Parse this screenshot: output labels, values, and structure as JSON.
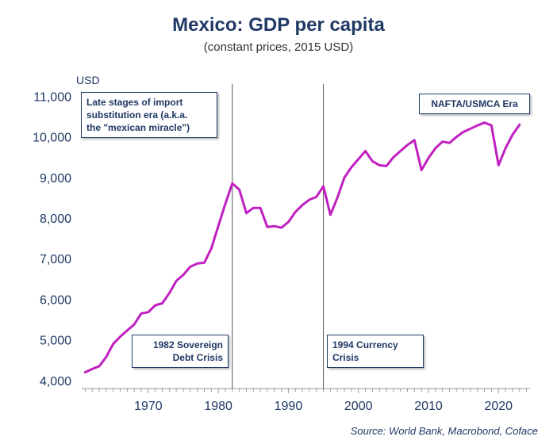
{
  "chart_data": {
    "type": "line",
    "title": "Mexico: GDP per capita",
    "subtitle": "(constant prices, 2015 USD)",
    "ylabel": "USD",
    "xlabel": "",
    "ylim": [
      3800,
      11300
    ],
    "xlim": [
      1960.5,
      2024.5
    ],
    "yticks": [
      4000,
      5000,
      6000,
      7000,
      8000,
      9000,
      10000,
      11000
    ],
    "yticklabels": [
      "4,000",
      "5,000",
      "6,000",
      "7,000",
      "8,000",
      "9,000",
      "10,000",
      "11,000"
    ],
    "xticks": [
      1970,
      1980,
      1990,
      2000,
      2010,
      2020
    ],
    "xticklabels": [
      "1970",
      "1980",
      "1990",
      "2000",
      "2010",
      "2020"
    ],
    "grid": false,
    "line_color": "#c020c0",
    "series": [
      {
        "x": [
          1961,
          1962,
          1963,
          1964,
          1965,
          1966,
          1967,
          1968,
          1969,
          1970,
          1971,
          1972,
          1973,
          1974,
          1975,
          1976,
          1977,
          1978,
          1979,
          1980,
          1981,
          1982,
          1983,
          1984,
          1985,
          1986,
          1987,
          1988,
          1989,
          1990,
          1991,
          1992,
          1993,
          1994,
          1995,
          1996,
          1997,
          1998,
          1999,
          2000,
          2001,
          2002,
          2003,
          2004,
          2005,
          2006,
          2007,
          2008,
          2009,
          2010,
          2011,
          2012,
          2013,
          2014,
          2015,
          2016,
          2017,
          2018,
          2019,
          2020,
          2021,
          2022,
          2023
        ],
        "values": [
          4200,
          4280,
          4350,
          4580,
          4900,
          5080,
          5230,
          5380,
          5650,
          5680,
          5850,
          5900,
          6150,
          6450,
          6600,
          6800,
          6880,
          6900,
          7250,
          7800,
          8350,
          8850,
          8700,
          8120,
          8250,
          8250,
          7780,
          7800,
          7760,
          7900,
          8150,
          8320,
          8450,
          8520,
          8780,
          8080,
          8500,
          9000,
          9250,
          9450,
          9650,
          9400,
          9300,
          9280,
          9500,
          9650,
          9800,
          9920,
          9180,
          9480,
          9720,
          9880,
          9850,
          10000,
          10120,
          10200,
          10280,
          10350,
          10280,
          9300,
          9720,
          10050,
          10300
        ]
      }
    ],
    "vertical_lines": [
      1982,
      1995
    ],
    "annotations": [
      {
        "text": "Late stages of import\nsubstitution era (a.k.a.\nthe \"mexican miracle\")"
      },
      {
        "text": "NAFTA/USMCA Era"
      },
      {
        "text": "1982 Sovereign\nDebt Crisis"
      },
      {
        "text": "1994 Currency\nCrisis"
      }
    ],
    "source": "Source: World Bank, Macrobond, Coface"
  }
}
